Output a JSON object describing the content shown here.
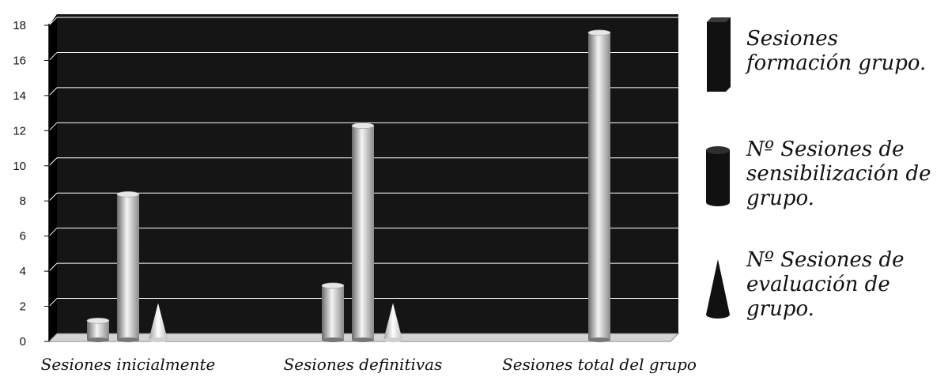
{
  "chart_data": {
    "type": "bar",
    "style": "3d-cylinders-cones",
    "categories": [
      "Sesiones inicialmente",
      "Sesiones definitivas",
      "Sesiones total del grupo"
    ],
    "y_ticks": [
      "0",
      "2",
      "4",
      "6",
      "8",
      "10",
      "12",
      "14",
      "16",
      "18"
    ],
    "ylim": [
      0,
      18
    ],
    "grid": true,
    "series": [
      {
        "name": "Sesiones formación grupo.",
        "shape": "cylinder",
        "values": [
          1,
          3,
          0
        ]
      },
      {
        "name": "Nº Sesiones de sensibilización de grupo.",
        "shape": "cylinder",
        "values": [
          8.2,
          12.1,
          17.4
        ]
      },
      {
        "name": "Nº Sesiones de evaluación de grupo.",
        "shape": "cone",
        "values": [
          2,
          2,
          0
        ]
      }
    ],
    "legend_position": "right",
    "colors": {
      "plot_background": "#151515",
      "grid": "#ffffff",
      "floor": "#d4d4d4",
      "bar_light": "#f2f2f2",
      "bar_dark": "#6a6a6a"
    }
  }
}
